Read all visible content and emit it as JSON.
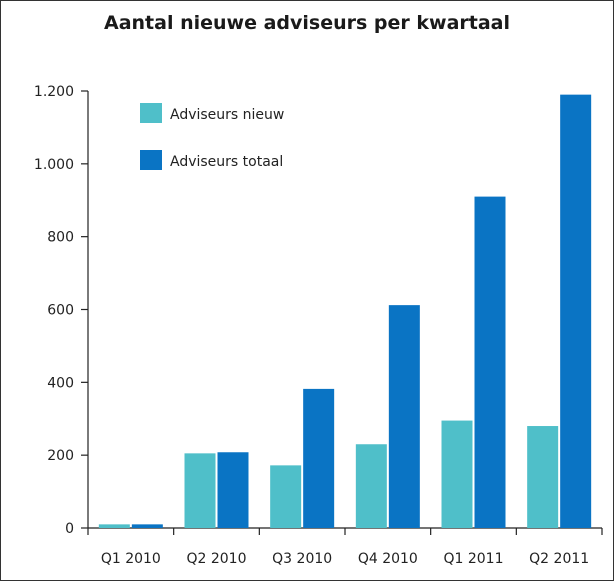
{
  "chart_data": {
    "type": "bar",
    "title": "Aantal nieuwe adviseurs per kwartaal",
    "xlabel": "",
    "ylabel": "",
    "categories": [
      "Q1 2010",
      "Q2 2010",
      "Q3 2010",
      "Q4 2010",
      "Q1 2011",
      "Q2 2011"
    ],
    "series": [
      {
        "name": "Adviseurs nieuw",
        "color": "#4fbfc9",
        "values": [
          10,
          205,
          172,
          230,
          295,
          280
        ]
      },
      {
        "name": "Adviseurs totaal",
        "color": "#0a74c4",
        "values": [
          10,
          208,
          382,
          612,
          910,
          1190
        ]
      }
    ],
    "ylim": [
      0,
      1200
    ],
    "yticks": [
      0,
      200,
      400,
      600,
      800,
      1000,
      1200
    ],
    "ytick_labels": [
      "0",
      "200",
      "400",
      "600",
      "800",
      "1.000",
      "1.200"
    ],
    "grid": false,
    "legend_position": "top-left"
  }
}
